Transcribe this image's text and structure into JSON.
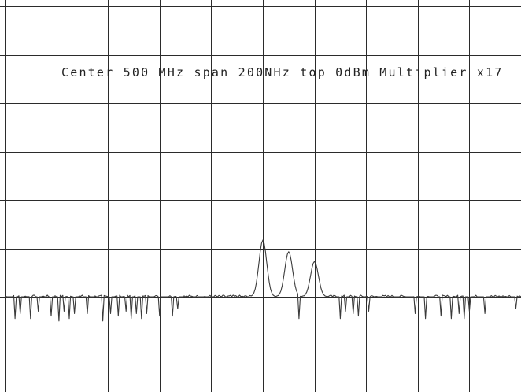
{
  "annotation": "Center 500 MHz span 200NHz top 0dBm Multiplier x17",
  "colors": {
    "background": "#ffffff",
    "grid": "#2b2b2b",
    "trace": "#3a3a3a"
  },
  "chart_data": {
    "type": "line",
    "title": "Center 500 MHz span 200NHz top 0dBm Multiplier x17",
    "xlabel": "",
    "ylabel": "",
    "grid": true,
    "x_divisions": 10,
    "y_divisions": 7,
    "xlim": [
      400,
      600
    ],
    "ylim": [
      0,
      7
    ],
    "noise_floor": 1.0,
    "peaks": [
      {
        "x": 500,
        "y": 2.17
      },
      {
        "x": 510,
        "y": 1.93
      },
      {
        "x": 520,
        "y": 1.73
      }
    ],
    "dips": [
      {
        "x": 404,
        "depth": 0.45
      },
      {
        "x": 406,
        "depth": 0.35
      },
      {
        "x": 410,
        "depth": 0.45
      },
      {
        "x": 413,
        "depth": 0.3
      },
      {
        "x": 418,
        "depth": 0.4
      },
      {
        "x": 421,
        "depth": 0.5
      },
      {
        "x": 423,
        "depth": 0.3
      },
      {
        "x": 425,
        "depth": 0.45
      },
      {
        "x": 427,
        "depth": 0.35
      },
      {
        "x": 432,
        "depth": 0.35
      },
      {
        "x": 438,
        "depth": 0.5
      },
      {
        "x": 441,
        "depth": 0.35
      },
      {
        "x": 444,
        "depth": 0.4
      },
      {
        "x": 447,
        "depth": 0.3
      },
      {
        "x": 449,
        "depth": 0.45
      },
      {
        "x": 451,
        "depth": 0.35
      },
      {
        "x": 453,
        "depth": 0.45
      },
      {
        "x": 455,
        "depth": 0.35
      },
      {
        "x": 460,
        "depth": 0.4
      },
      {
        "x": 465,
        "depth": 0.4
      },
      {
        "x": 467,
        "depth": 0.25
      },
      {
        "x": 514,
        "depth": 0.45
      },
      {
        "x": 530,
        "depth": 0.45
      },
      {
        "x": 532,
        "depth": 0.3
      },
      {
        "x": 535,
        "depth": 0.35
      },
      {
        "x": 537,
        "depth": 0.4
      },
      {
        "x": 541,
        "depth": 0.3
      },
      {
        "x": 559,
        "depth": 0.35
      },
      {
        "x": 563,
        "depth": 0.45
      },
      {
        "x": 569,
        "depth": 0.4
      },
      {
        "x": 573,
        "depth": 0.45
      },
      {
        "x": 576,
        "depth": 0.35
      },
      {
        "x": 578,
        "depth": 0.45
      },
      {
        "x": 580,
        "depth": 0.3
      },
      {
        "x": 586,
        "depth": 0.35
      },
      {
        "x": 598,
        "depth": 0.25
      }
    ]
  }
}
